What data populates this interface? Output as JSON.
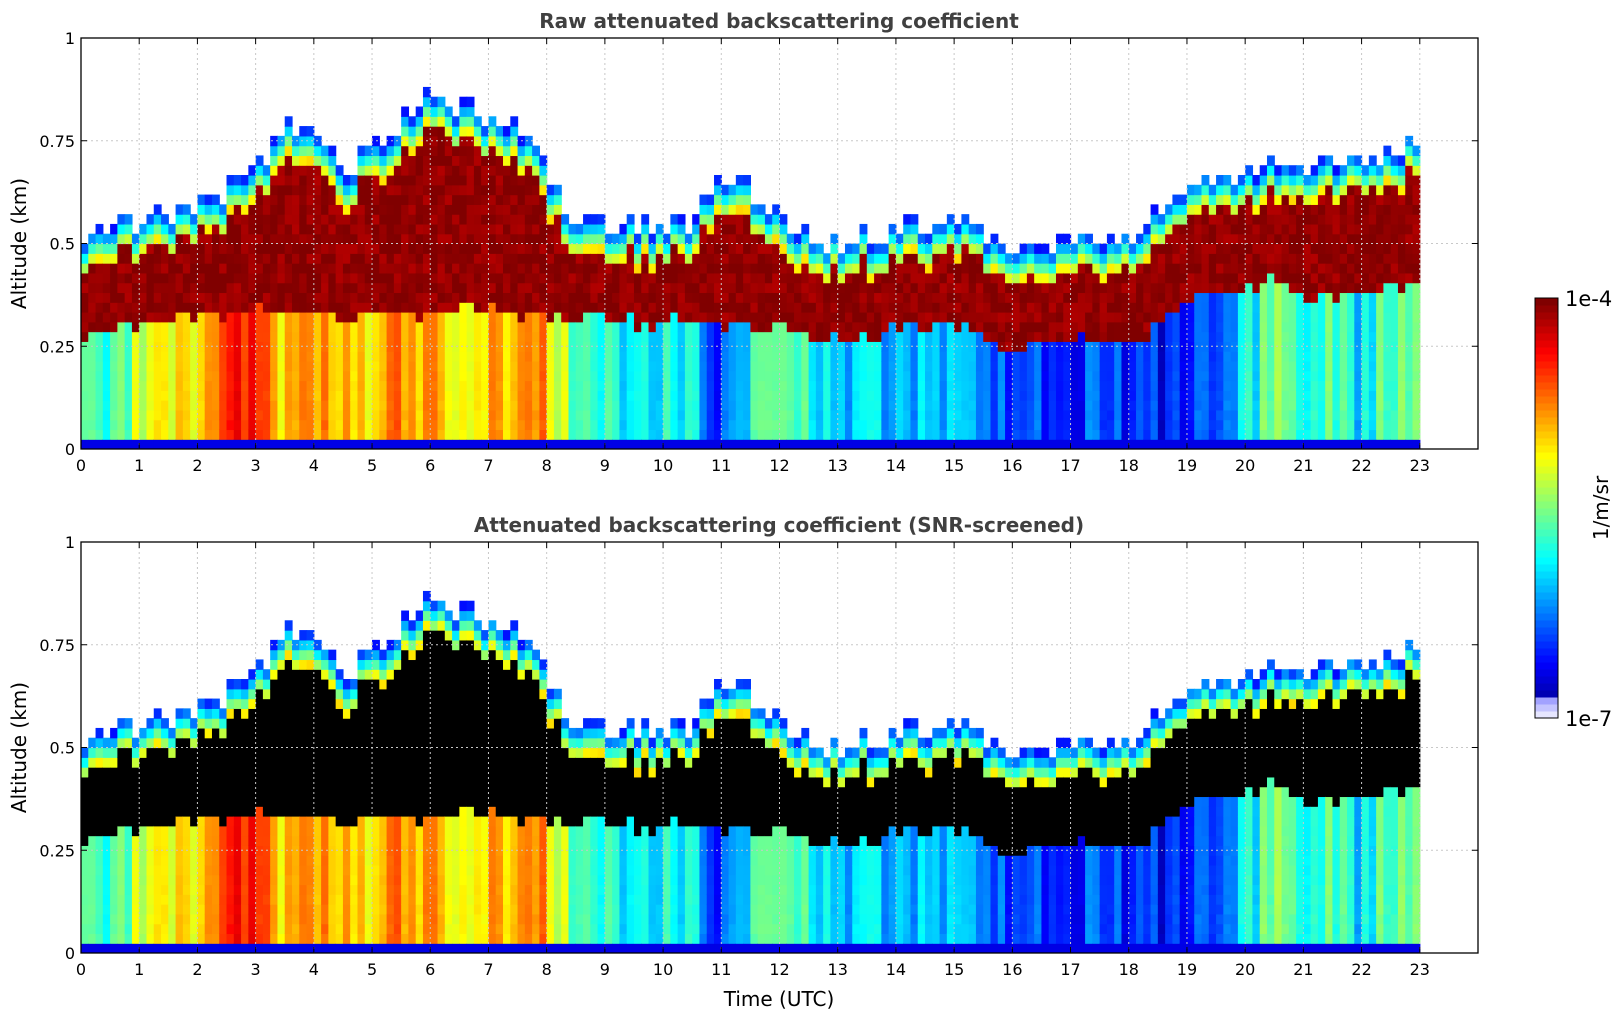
{
  "chart_data": [
    {
      "type": "heatmap",
      "title": "Raw attenuated backscattering coefficient",
      "xlabel": "",
      "ylabel": "Altitude (km)",
      "xlim": [
        0,
        24
      ],
      "ylim": [
        0,
        1
      ],
      "x_ticks": [
        "0",
        "1",
        "2",
        "3",
        "4",
        "5",
        "6",
        "7",
        "8",
        "9",
        "10",
        "11",
        "12",
        "13",
        "14",
        "15",
        "16",
        "17",
        "18",
        "19",
        "20",
        "21",
        "22",
        "23"
      ],
      "y_ticks": [
        "0",
        "0.25",
        "0.5",
        "0.75",
        "1"
      ],
      "grid": true,
      "screened": false,
      "data_end_hour": 23,
      "layer_profile": {
        "x": [
          0,
          0.5,
          1,
          1.5,
          2,
          2.5,
          3,
          3.5,
          4,
          4.5,
          5,
          5.5,
          6,
          6.5,
          7,
          7.5,
          8,
          8.5,
          9,
          9.5,
          10,
          10.5,
          11,
          11.5,
          12,
          12.5,
          13,
          13.5,
          14,
          14.5,
          15,
          15.5,
          16,
          16.5,
          17,
          17.5,
          18,
          18.3,
          18.5,
          19,
          19.5,
          20,
          20.5,
          21,
          21.5,
          22,
          22.5,
          23
        ],
        "layer_top_km": [
          0.45,
          0.46,
          0.48,
          0.5,
          0.52,
          0.55,
          0.6,
          0.72,
          0.7,
          0.6,
          0.65,
          0.7,
          0.8,
          0.75,
          0.72,
          0.7,
          0.6,
          0.48,
          0.47,
          0.47,
          0.46,
          0.47,
          0.58,
          0.55,
          0.48,
          0.45,
          0.42,
          0.44,
          0.45,
          0.46,
          0.47,
          0.45,
          0.4,
          0.41,
          0.43,
          0.42,
          0.43,
          0.44,
          0.5,
          0.54,
          0.58,
          0.6,
          0.61,
          0.62,
          0.61,
          0.62,
          0.64,
          0.68
        ],
        "layer_base_km": [
          0.28,
          0.28,
          0.3,
          0.32,
          0.33,
          0.33,
          0.34,
          0.34,
          0.33,
          0.32,
          0.33,
          0.33,
          0.33,
          0.34,
          0.34,
          0.33,
          0.32,
          0.32,
          0.32,
          0.31,
          0.31,
          0.31,
          0.3,
          0.3,
          0.3,
          0.28,
          0.27,
          0.28,
          0.29,
          0.29,
          0.3,
          0.27,
          0.23,
          0.26,
          0.27,
          0.26,
          0.26,
          0.26,
          0.32,
          0.35,
          0.38,
          0.4,
          0.41,
          0.38,
          0.36,
          0.38,
          0.4,
          0.4
        ],
        "below_layer_log10": [
          -5.8,
          -5.8,
          -5.3,
          -5.0,
          -5.2,
          -4.6,
          -4.5,
          -5.0,
          -4.7,
          -4.9,
          -5.0,
          -4.8,
          -4.9,
          -5.1,
          -5.0,
          -4.8,
          -4.9,
          -5.6,
          -5.8,
          -5.9,
          -5.8,
          -5.9,
          -6.5,
          -5.8,
          -5.7,
          -5.8,
          -6.0,
          -6.0,
          -6.1,
          -6.0,
          -6.1,
          -6.2,
          -6.4,
          -6.4,
          -6.5,
          -6.4,
          -6.5,
          -6.5,
          -6.6,
          -6.6,
          -6.4,
          -6.0,
          -5.5,
          -6.0,
          -5.5,
          -6.0,
          -5.5,
          -5.5
        ]
      }
    },
    {
      "type": "heatmap",
      "title": "Attenuated backscattering coefficient (SNR-screened)",
      "xlabel": "Time (UTC)",
      "ylabel": "Altitude (km)",
      "xlim": [
        0,
        24
      ],
      "ylim": [
        0,
        1
      ],
      "x_ticks": [
        "0",
        "1",
        "2",
        "3",
        "4",
        "5",
        "6",
        "7",
        "8",
        "9",
        "10",
        "11",
        "12",
        "13",
        "14",
        "15",
        "16",
        "17",
        "18",
        "19",
        "20",
        "21",
        "22",
        "23"
      ],
      "y_ticks": [
        "0",
        "0.25",
        "0.5",
        "0.75",
        "1"
      ],
      "grid": true,
      "screened": true,
      "data_end_hour": 23
    }
  ],
  "colorbar": {
    "label": "1/m/sr",
    "max_label": "1e-4",
    "min_label": "1e-7",
    "min_log10": -7,
    "max_log10": -4,
    "colormap": "jet"
  },
  "colors": {
    "title_text": "#404040",
    "axis_text": "#000000",
    "grid": "#c8c8c8",
    "frame": "#000000",
    "screened_saturation": "#000000"
  }
}
